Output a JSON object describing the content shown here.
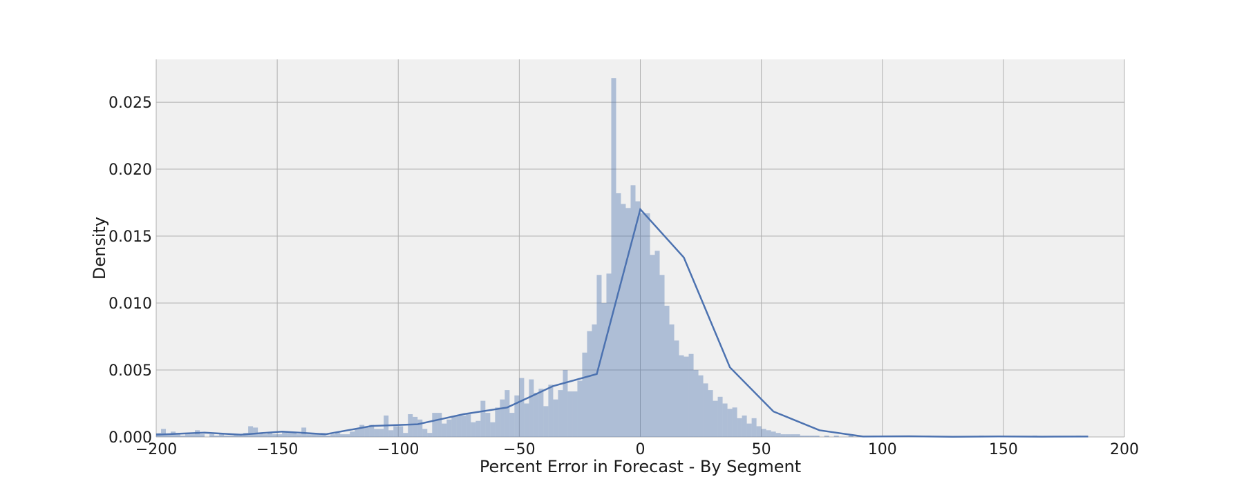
{
  "chart_data": {
    "type": "histogram",
    "title": "",
    "xlabel": "Percent Error in Forecast - By Segment",
    "ylabel": "Density",
    "xlim": [
      -200,
      200
    ],
    "ylim": [
      0,
      0.0282
    ],
    "x_ticks": [
      -200,
      -150,
      -100,
      -50,
      0,
      50,
      100,
      150,
      200
    ],
    "x_tick_labels": [
      "−200",
      "−150",
      "−100",
      "−50",
      "0",
      "50",
      "100",
      "150",
      "200"
    ],
    "y_ticks": [
      0.0,
      0.005,
      0.01,
      0.015,
      0.02,
      0.025
    ],
    "y_tick_labels": [
      "0.000",
      "0.005",
      "0.010",
      "0.015",
      "0.020",
      "0.025"
    ],
    "grid": true,
    "background_color": "#f0f0f0",
    "grid_color": "#b0b0b0",
    "bar_color": "#4c72b0",
    "bar_opacity": 0.4,
    "line_color": "#4c72b0",
    "histogram": {
      "bin_width": 2,
      "bins": [
        [
          -200,
          0.0003
        ],
        [
          -198,
          0.0006
        ],
        [
          -196,
          0.0002
        ],
        [
          -194,
          0.0004
        ],
        [
          -192,
          0.0002
        ],
        [
          -190,
          0.0001
        ],
        [
          -188,
          0.0003
        ],
        [
          -186,
          0.0002
        ],
        [
          -184,
          0.0005
        ],
        [
          -182,
          0.0002
        ],
        [
          -178,
          0.0002
        ],
        [
          -176,
          0.0001
        ],
        [
          -174,
          0.0002
        ],
        [
          -172,
          0.0001
        ],
        [
          -170,
          0.0001
        ],
        [
          -168,
          0.0002
        ],
        [
          -166,
          0.0001
        ],
        [
          -164,
          0.0003
        ],
        [
          -162,
          0.0008
        ],
        [
          -160,
          0.0007
        ],
        [
          -158,
          0.0003
        ],
        [
          -156,
          0.0002
        ],
        [
          -154,
          0.0003
        ],
        [
          -152,
          0.0002
        ],
        [
          -150,
          0.0002
        ],
        [
          -148,
          0.0004
        ],
        [
          -146,
          0.0003
        ],
        [
          -144,
          0.0003
        ],
        [
          -142,
          0.0002
        ],
        [
          -140,
          0.0007
        ],
        [
          -138,
          0.0002
        ],
        [
          -136,
          0.0003
        ],
        [
          -134,
          0.0002
        ],
        [
          -132,
          0.0003
        ],
        [
          -130,
          0.0001
        ],
        [
          -128,
          0.0002
        ],
        [
          -126,
          0.0003
        ],
        [
          -124,
          0.0002
        ],
        [
          -122,
          0.0002
        ],
        [
          -120,
          0.0004
        ],
        [
          -118,
          0.0006
        ],
        [
          -116,
          0.0009
        ],
        [
          -114,
          0.0007
        ],
        [
          -112,
          0.0009
        ],
        [
          -110,
          0.0006
        ],
        [
          -108,
          0.0006
        ],
        [
          -106,
          0.0016
        ],
        [
          -104,
          0.0005
        ],
        [
          -102,
          0.0008
        ],
        [
          -100,
          0.0008
        ],
        [
          -98,
          0.0003
        ],
        [
          -96,
          0.0017
        ],
        [
          -94,
          0.0015
        ],
        [
          -92,
          0.0013
        ],
        [
          -90,
          0.0006
        ],
        [
          -88,
          0.0003
        ],
        [
          -86,
          0.0018
        ],
        [
          -84,
          0.0018
        ],
        [
          -82,
          0.001
        ],
        [
          -80,
          0.0013
        ],
        [
          -78,
          0.0015
        ],
        [
          -76,
          0.0016
        ],
        [
          -74,
          0.0016
        ],
        [
          -72,
          0.0017
        ],
        [
          -70,
          0.0011
        ],
        [
          -68,
          0.0012
        ],
        [
          -66,
          0.0027
        ],
        [
          -64,
          0.0018
        ],
        [
          -62,
          0.0011
        ],
        [
          -60,
          0.0022
        ],
        [
          -58,
          0.0028
        ],
        [
          -56,
          0.0035
        ],
        [
          -54,
          0.0018
        ],
        [
          -52,
          0.0031
        ],
        [
          -50,
          0.0044
        ],
        [
          -48,
          0.0025
        ],
        [
          -46,
          0.0043
        ],
        [
          -44,
          0.0033
        ],
        [
          -42,
          0.0036
        ],
        [
          -40,
          0.0023
        ],
        [
          -38,
          0.0039
        ],
        [
          -36,
          0.0028
        ],
        [
          -34,
          0.0035
        ],
        [
          -32,
          0.005
        ],
        [
          -30,
          0.0034
        ],
        [
          -28,
          0.0034
        ],
        [
          -26,
          0.0042
        ],
        [
          -24,
          0.0063
        ],
        [
          -22,
          0.0079
        ],
        [
          -20,
          0.0084
        ],
        [
          -18,
          0.0121
        ],
        [
          -16,
          0.01
        ],
        [
          -14,
          0.0122
        ],
        [
          -12,
          0.0268
        ],
        [
          -10,
          0.0182
        ],
        [
          -8,
          0.0174
        ],
        [
          -6,
          0.0171
        ],
        [
          -4,
          0.0188
        ],
        [
          -2,
          0.0176
        ],
        [
          0,
          0.0167
        ],
        [
          2,
          0.0167
        ],
        [
          4,
          0.0136
        ],
        [
          6,
          0.0139
        ],
        [
          8,
          0.0121
        ],
        [
          10,
          0.0098
        ],
        [
          12,
          0.0084
        ],
        [
          14,
          0.0072
        ],
        [
          16,
          0.0061
        ],
        [
          18,
          0.006
        ],
        [
          20,
          0.0062
        ],
        [
          22,
          0.005
        ],
        [
          24,
          0.0046
        ],
        [
          26,
          0.004
        ],
        [
          28,
          0.0035
        ],
        [
          30,
          0.0027
        ],
        [
          32,
          0.003
        ],
        [
          34,
          0.0025
        ],
        [
          36,
          0.0021
        ],
        [
          38,
          0.0022
        ],
        [
          40,
          0.0014
        ],
        [
          42,
          0.0016
        ],
        [
          44,
          0.001
        ],
        [
          46,
          0.0014
        ],
        [
          48,
          0.0008
        ],
        [
          50,
          0.0006
        ],
        [
          52,
          0.0005
        ],
        [
          54,
          0.0004
        ],
        [
          56,
          0.0003
        ],
        [
          58,
          0.0002
        ],
        [
          60,
          0.0002
        ],
        [
          62,
          0.0002
        ],
        [
          64,
          0.0002
        ],
        [
          66,
          0.0001
        ],
        [
          68,
          0.0001
        ],
        [
          70,
          0.0001
        ],
        [
          72,
          0.0001
        ],
        [
          76,
          0.0001
        ],
        [
          80,
          0.0001
        ],
        [
          86,
          0.0001
        ],
        [
          96,
          0.0001
        ],
        [
          118,
          0.0001
        ],
        [
          140,
          0.0001
        ],
        [
          162,
          0.0001
        ],
        [
          180,
          0.0001
        ]
      ]
    },
    "density_line": {
      "x": [
        -200,
        -180,
        -165,
        -148,
        -130,
        -111,
        -92,
        -73,
        -55,
        -36,
        -18,
        0,
        18,
        37,
        55,
        74,
        92,
        111,
        129,
        148,
        166,
        185
      ],
      "y": [
        0.00017,
        0.00032,
        0.00017,
        0.0004,
        0.0002,
        0.00082,
        0.00095,
        0.0017,
        0.0022,
        0.0038,
        0.0047,
        0.017,
        0.0134,
        0.0052,
        0.0019,
        0.0005,
        3e-05,
        5e-05,
        1e-05,
        4e-05,
        2e-05,
        3e-05
      ]
    }
  }
}
